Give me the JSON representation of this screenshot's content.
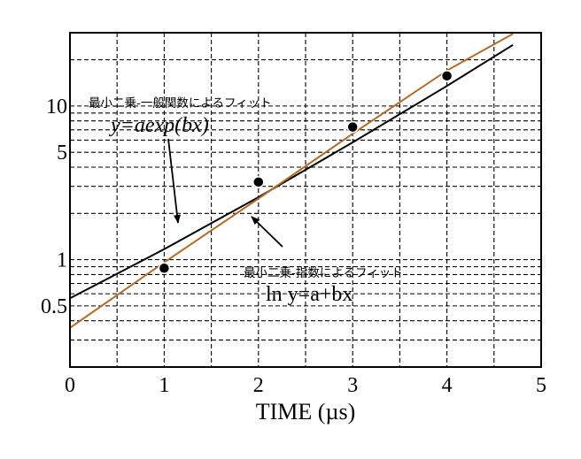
{
  "chart_data": {
    "type": "line",
    "title": "",
    "xlabel": "TIME (µs)",
    "ylabel": "",
    "xlim": [
      0,
      5
    ],
    "ylim": [
      0.2,
      30
    ],
    "yscale": "log",
    "x_ticks": [
      "0",
      "1",
      "2",
      "3",
      "4",
      "5"
    ],
    "y_ticks": [
      {
        "value": 0.5,
        "label": "0.5"
      },
      {
        "value": 1,
        "label": "1"
      },
      {
        "value": 5,
        "label": "5"
      },
      {
        "value": 10,
        "label": "10"
      }
    ],
    "grid": true,
    "points": {
      "x": [
        1,
        2,
        3,
        4
      ],
      "y": [
        0.88,
        3.2,
        7.3,
        15.7
      ]
    },
    "series": [
      {
        "color": "#000000",
        "x": [
          0,
          1,
          2,
          3,
          4,
          4.7
        ],
        "y": [
          0.56,
          1.17,
          2.55,
          5.8,
          13.5,
          25.0
        ]
      },
      {
        "color": "#b26a2a",
        "x": [
          0,
          1,
          2,
          3,
          4,
          4.7
        ],
        "y": [
          0.36,
          0.96,
          2.5,
          6.6,
          17.0,
          29.5
        ]
      }
    ],
    "annotations": [
      {
        "line1": "最小二乗-一般関数によるフィット",
        "eq": "y=aexp(bx)"
      },
      {
        "line1": "最小二乗-指数によるフィット",
        "eq": "ln y=a+bx"
      }
    ]
  }
}
